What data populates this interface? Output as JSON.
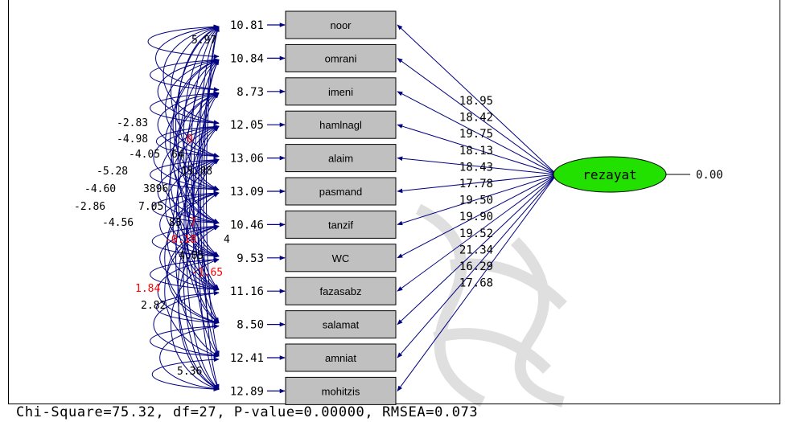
{
  "latent": {
    "name": "rezayat",
    "variance": "0.00",
    "fill": "#22e000"
  },
  "indicators": [
    {
      "name": "noor",
      "error": "10.81",
      "loading": "18.95"
    },
    {
      "name": "omrani",
      "error": "10.84",
      "loading": "18.42"
    },
    {
      "name": "imeni",
      "error": "8.73",
      "loading": "19.75"
    },
    {
      "name": "hamlnagl",
      "error": "12.05",
      "loading": "18.13"
    },
    {
      "name": "alaim",
      "error": "13.06",
      "loading": "18.43"
    },
    {
      "name": "pasmand",
      "error": "13.09",
      "loading": "17.78"
    },
    {
      "name": "tanzif",
      "error": "10.46",
      "loading": "19.50"
    },
    {
      "name": "WC",
      "error": "9.53",
      "loading": "19.90"
    },
    {
      "name": "fazasabz",
      "error": "11.16",
      "loading": "19.52"
    },
    {
      "name": "salamat",
      "error": "8.50",
      "loading": "21.34"
    },
    {
      "name": "amniat",
      "error": "12.41",
      "loading": "16.29"
    },
    {
      "name": "mohitzis",
      "error": "12.89",
      "loading": "17.68"
    }
  ],
  "covariance_labels": [
    {
      "text": "5.97",
      "color": "#000000"
    },
    {
      "text": "-2.83",
      "color": "#000000"
    },
    {
      "text": "-4.98",
      "color": "#000000"
    },
    {
      "text": "0",
      "color": "#ff0000"
    },
    {
      "text": "-4.05",
      "color": "#000000"
    },
    {
      "text": "64",
      "color": "#000000"
    },
    {
      "text": "-5.28",
      "color": "#000000"
    },
    {
      "text": "15.88",
      "color": "#000000"
    },
    {
      "text": "-4.60",
      "color": "#000000"
    },
    {
      "text": "3896",
      "color": "#000000"
    },
    {
      "text": "-2.86",
      "color": "#000000"
    },
    {
      "text": "7.05",
      "color": "#000000"
    },
    {
      "text": "-4.56",
      "color": "#000000"
    },
    {
      "text": "83",
      "color": "#000000"
    },
    {
      "text": "7",
      "color": "#ff0000"
    },
    {
      "text": "-0.18",
      "color": "#ff0000"
    },
    {
      "text": "4",
      "color": "#000000"
    },
    {
      "text": "4.05",
      "color": "#000000"
    },
    {
      "text": "1.84",
      "color": "#ff0000"
    },
    {
      "text": "2.82",
      "color": "#000000"
    },
    {
      "text": "-1.65",
      "color": "#ff0000"
    },
    {
      "text": "5.36",
      "color": "#000000"
    }
  ],
  "fit_statistics": "Chi-Square=75.32, df=27, P-value=0.00000, RMSEA=0.073",
  "colors": {
    "path": "#000080",
    "box_fill": "#c0c0c0",
    "negative_label": "#ff0000"
  }
}
